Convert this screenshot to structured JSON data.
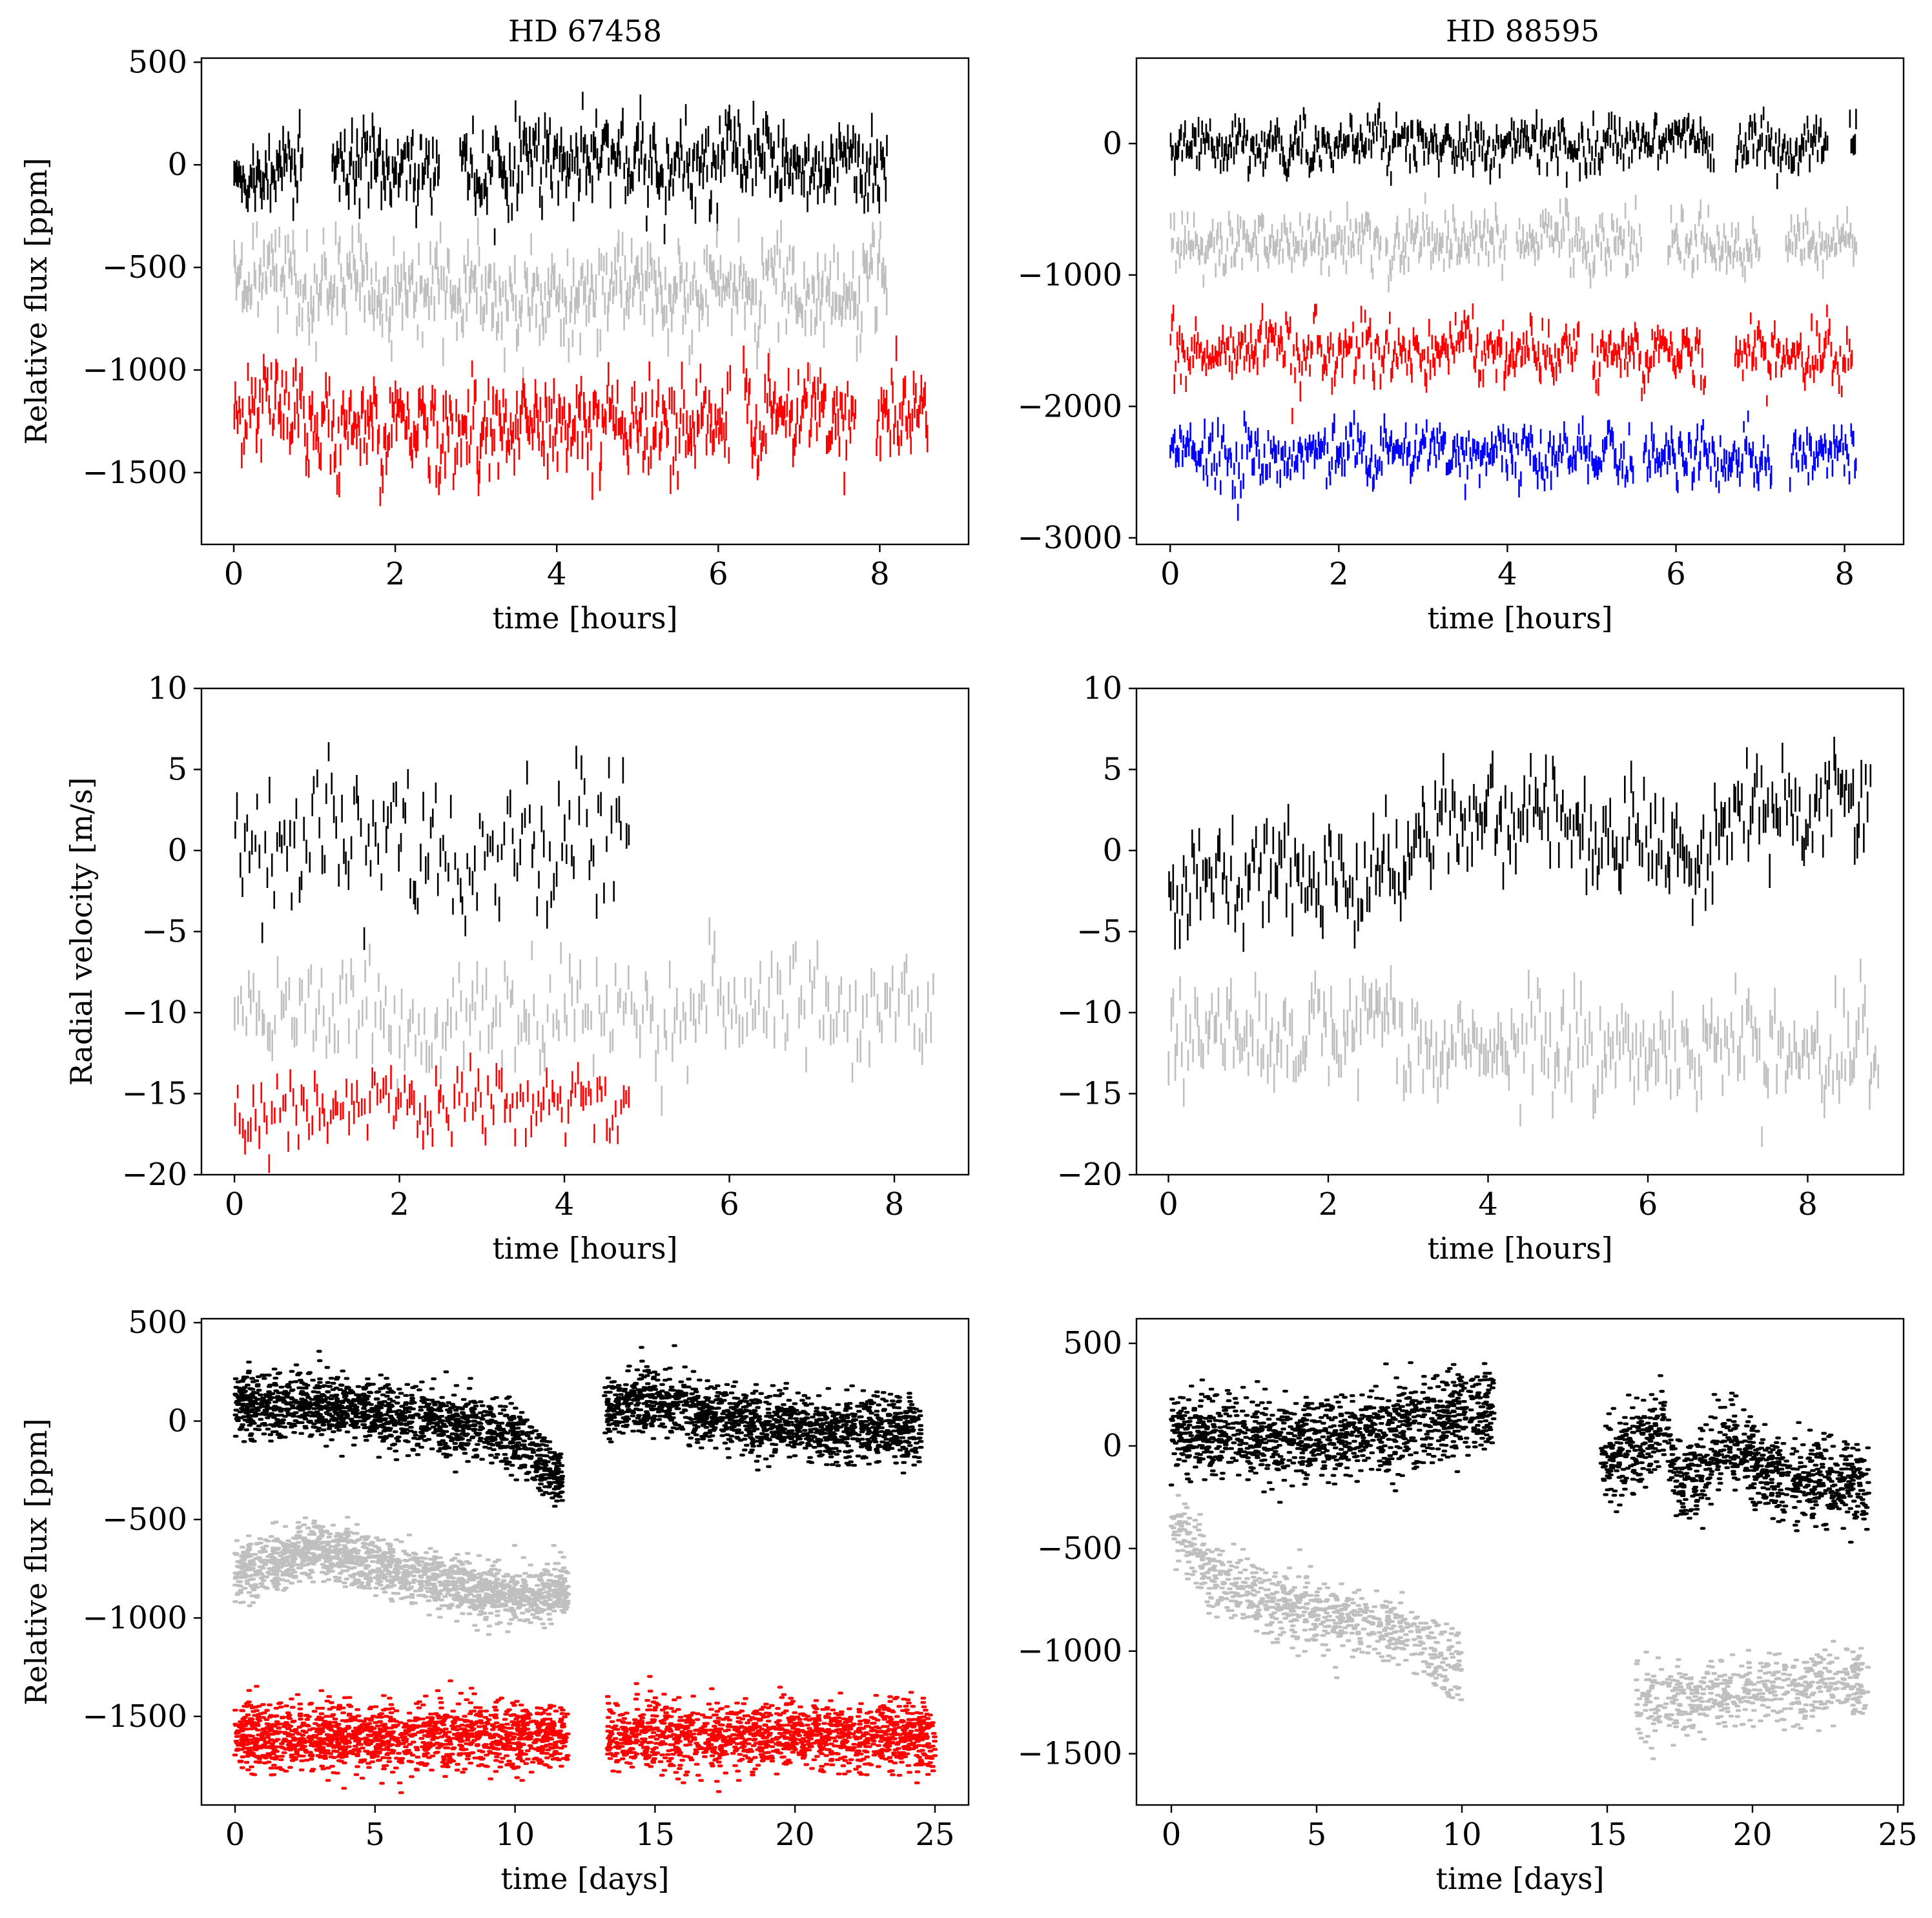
{
  "figure": {
    "titles": [
      "HD 67458",
      "HD 88595"
    ]
  },
  "chart_data": [
    {
      "id": "p00",
      "type": "errorbar",
      "title": "HD 67458",
      "xlabel": "time [hours]",
      "ylabel": "Relative flux [ppm]",
      "xlim": [
        -0.4,
        9.1
      ],
      "ylim": [
        -1850,
        520
      ],
      "xticks": [
        0,
        2,
        4,
        6,
        8
      ],
      "yticks": [
        500,
        0,
        -500,
        -1000,
        -1500
      ],
      "series": [
        {
          "color": "#000000",
          "mean": 0,
          "noise": 120,
          "err": 55,
          "span": [
            0,
            8.1
          ],
          "gaps": [
            [
              0.85,
              1.2
            ],
            [
              2.55,
              2.8
            ]
          ],
          "n": 520
        },
        {
          "color": "#bfbfbf",
          "mean": -620,
          "noise": 130,
          "err": 55,
          "span": [
            0,
            8.1
          ],
          "gaps": [
            [
              4.5,
              4.5
            ]
          ],
          "n": 520
        },
        {
          "color": "#ff0000",
          "mean": -1260,
          "noise": 130,
          "err": 55,
          "span": [
            0,
            8.6
          ],
          "gaps": [
            [
              6.15,
              6.3
            ],
            [
              7.7,
              7.95
            ]
          ],
          "n": 560
        }
      ]
    },
    {
      "id": "p01",
      "type": "errorbar",
      "title": "HD 88595",
      "xlabel": "time [hours]",
      "ylabel": "",
      "xlim": [
        -0.4,
        8.7
      ],
      "ylim": [
        -3050,
        650
      ],
      "xticks": [
        0,
        2,
        4,
        6,
        8
      ],
      "yticks": [
        0,
        -1000,
        -2000,
        -3000
      ],
      "series": [
        {
          "color": "#000000",
          "mean": 0,
          "noise": 110,
          "err": 60,
          "span": [
            0,
            8.15
          ],
          "gaps": [
            [
              6.45,
              6.7
            ],
            [
              7.8,
              8.05
            ]
          ],
          "n": 520
        },
        {
          "color": "#bfbfbf",
          "mean": -760,
          "noise": 120,
          "err": 60,
          "span": [
            0,
            8.15
          ],
          "gaps": [
            [
              2.5,
              2.55
            ],
            [
              4.0,
              4.1
            ],
            [
              5.6,
              5.9
            ],
            [
              7.0,
              7.3
            ]
          ],
          "n": 520
        },
        {
          "color": "#ff0000",
          "mean": -1580,
          "noise": 120,
          "err": 60,
          "span": [
            0,
            8.1
          ],
          "gaps": [
            [
              4.85,
              5.0
            ],
            [
              6.35,
              6.7
            ]
          ],
          "n": 520
        },
        {
          "color": "#0000ff",
          "mean": -2380,
          "noise": 120,
          "err": 60,
          "span": [
            0,
            8.15
          ],
          "gaps": [
            [
              5.5,
              5.6
            ],
            [
              7.15,
              7.35
            ]
          ],
          "n": 520
        }
      ]
    },
    {
      "id": "p10",
      "type": "errorbar",
      "title": "",
      "xlabel": "time [hours]",
      "ylabel": "Radial velocity [m/s]",
      "xlim": [
        -0.4,
        8.9
      ],
      "ylim": [
        -20,
        10
      ],
      "xticks": [
        0,
        2,
        4,
        6,
        8
      ],
      "yticks": [
        10,
        5,
        0,
        -5,
        -10,
        -15,
        -20
      ],
      "series": [
        {
          "color": "#000000",
          "mean": 0.5,
          "noise": 2.5,
          "err": 0.7,
          "span": [
            0,
            4.8
          ],
          "gaps": [],
          "n": 160
        },
        {
          "color": "#bfbfbf",
          "mean": -10.2,
          "noise": 1.8,
          "err": 0.8,
          "span": [
            0,
            8.5
          ],
          "gaps": [],
          "n": 260
        },
        {
          "color": "#ff0000",
          "mean": -15.8,
          "noise": 1.2,
          "err": 0.6,
          "span": [
            0,
            4.8
          ],
          "gaps": [],
          "n": 150
        }
      ]
    },
    {
      "id": "p11",
      "type": "errorbar",
      "title": "",
      "xlabel": "time [hours]",
      "ylabel": "",
      "xlim": [
        -0.4,
        9.2
      ],
      "ylim": [
        -20,
        10
      ],
      "xticks": [
        0,
        2,
        4,
        6,
        8
      ],
      "yticks": [
        10,
        5,
        0,
        -5,
        -10,
        -15,
        -20
      ],
      "series": [
        {
          "color": "#000000",
          "mean": 0,
          "noise": 1.8,
          "err": 0.9,
          "span": [
            0,
            8.8
          ],
          "gaps": [],
          "trend": [
            [
              0,
              -2
            ],
            [
              2,
              -2
            ],
            [
              4,
              2.5
            ],
            [
              6,
              0.5
            ],
            [
              8.8,
              3
            ]
          ],
          "n": 330
        },
        {
          "color": "#bfbfbf",
          "mean": -12,
          "noise": 1.8,
          "err": 0.9,
          "span": [
            0,
            8.9
          ],
          "gaps": [],
          "n": 330
        }
      ]
    },
    {
      "id": "p20",
      "type": "scatter",
      "title": "",
      "xlabel": "time [days]",
      "ylabel": "Relative flux [ppm]",
      "xlim": [
        -1.2,
        26.2
      ],
      "ylim": [
        -1950,
        520
      ],
      "xticks": [
        0,
        5,
        10,
        15,
        20,
        25
      ],
      "yticks": [
        500,
        0,
        -500,
        -1000,
        -1500
      ],
      "series": [
        {
          "color": "#000000",
          "noise": 80,
          "span": [
            0,
            24.5
          ],
          "gaps": [
            [
              11.7,
              13.2
            ]
          ],
          "trend": [
            [
              0,
              80
            ],
            [
              3,
              90
            ],
            [
              7,
              0
            ],
            [
              10,
              -80
            ],
            [
              11.5,
              -300
            ],
            [
              13.2,
              60
            ],
            [
              15,
              100
            ],
            [
              20,
              -40
            ],
            [
              24.5,
              -40
            ]
          ],
          "n": 3000
        },
        {
          "color": "#bfbfbf",
          "noise": 70,
          "span": [
            0,
            11.9
          ],
          "gaps": [],
          "trend": [
            [
              0,
              -780
            ],
            [
              3,
              -650
            ],
            [
              7,
              -800
            ],
            [
              10,
              -900
            ],
            [
              11.9,
              -850
            ]
          ],
          "n": 1600
        },
        {
          "color": "#ff0000",
          "noise": 85,
          "span": [
            0,
            25
          ],
          "gaps": [
            [
              11.9,
              13.3
            ]
          ],
          "trend": [
            [
              0,
              -1600
            ],
            [
              25,
              -1600
            ]
          ],
          "n": 3000
        }
      ]
    },
    {
      "id": "p21",
      "type": "scatter",
      "title": "",
      "xlabel": "time [days]",
      "ylabel": "",
      "xlim": [
        -1.2,
        25.2
      ],
      "ylim": [
        -1750,
        620
      ],
      "xticks": [
        0,
        5,
        10,
        15,
        20,
        25
      ],
      "yticks": [
        500,
        0,
        -500,
        -1000,
        -1500
      ],
      "series": [
        {
          "color": "#000000",
          "noise": 100,
          "span": [
            0,
            24
          ],
          "gaps": [
            [
              11.1,
              14.8
            ]
          ],
          "trend": [
            [
              0,
              60
            ],
            [
              5,
              30
            ],
            [
              8,
              80
            ],
            [
              11.1,
              180
            ],
            [
              14.8,
              -80
            ],
            [
              16.5,
              50
            ],
            [
              17,
              100
            ],
            [
              17.5,
              -200
            ],
            [
              19,
              0
            ],
            [
              21,
              -150
            ],
            [
              24,
              -200
            ]
          ],
          "n": 2600
        },
        {
          "color": "#bfbfbf",
          "noise": 85,
          "span": [
            0,
            24
          ],
          "gaps": [
            [
              10,
              16
            ]
          ],
          "trend": [
            [
              0,
              -350
            ],
            [
              1.5,
              -650
            ],
            [
              4,
              -800
            ],
            [
              8,
              -900
            ],
            [
              10,
              -1100
            ],
            [
              16,
              -1250
            ],
            [
              20,
              -1200
            ],
            [
              24,
              -1150
            ]
          ],
          "n": 1800
        }
      ]
    }
  ]
}
